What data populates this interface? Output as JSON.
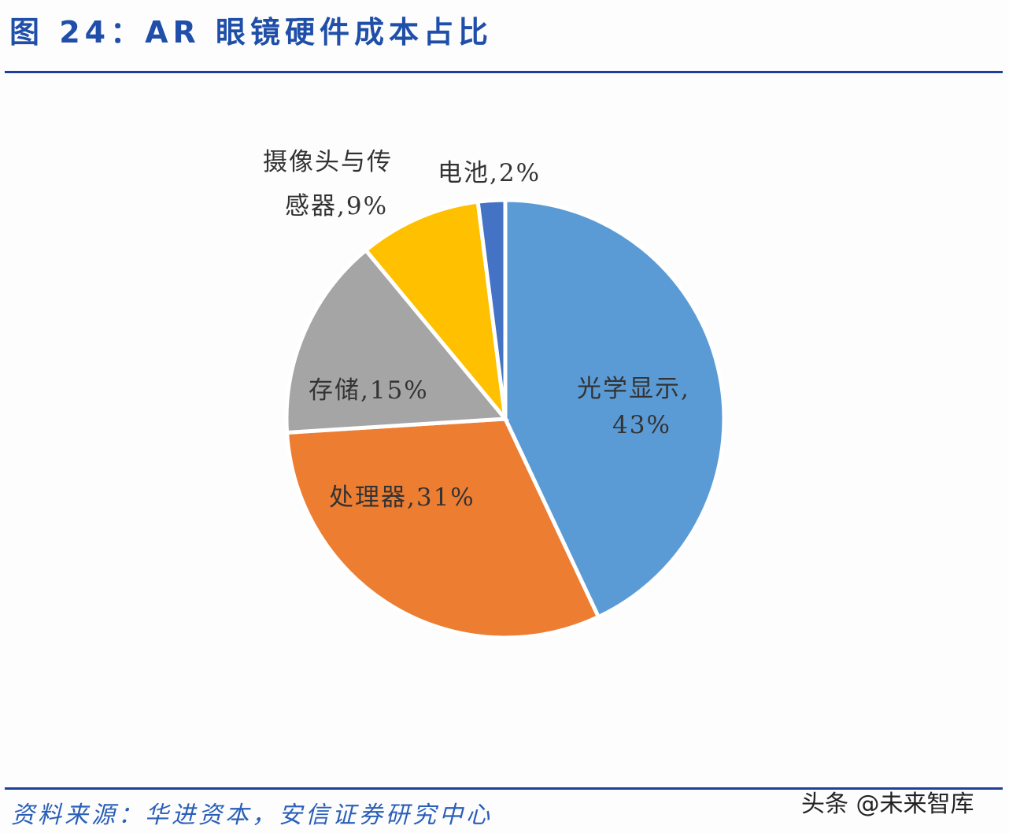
{
  "header": {
    "title": "图 24：AR 眼镜硬件成本占比"
  },
  "footer": {
    "source": "资料来源：华进资本，安信证券研究中心",
    "watermark": "头条 @未来智库"
  },
  "chart_data": {
    "type": "pie",
    "title": "图 24：AR 眼镜硬件成本占比",
    "categories": [
      "光学显示",
      "处理器",
      "存储",
      "摄像头与传感器",
      "电池"
    ],
    "values": [
      43,
      31,
      15,
      9,
      2
    ],
    "unit": "%",
    "colors": [
      "#5b9bd5",
      "#ed7d31",
      "#a5a5a5",
      "#ffc000",
      "#4472c4"
    ],
    "labels": [
      "光学显示, 43%",
      "处理器, 31%",
      "存储, 15%",
      "摄像头与传感器, 9%",
      "电池, 2%"
    ],
    "start_angle": "12 o'clock",
    "direction": "clockwise",
    "legend": "none (data labels on/near slices)"
  },
  "labels": {
    "optical_line1": "光学显示,",
    "optical_line2": "43%",
    "processor": "处理器,31%",
    "storage": "存储,15%",
    "camera_line1": "摄像头与传",
    "camera_line2": "感器,9%",
    "battery": "电池,2%"
  }
}
